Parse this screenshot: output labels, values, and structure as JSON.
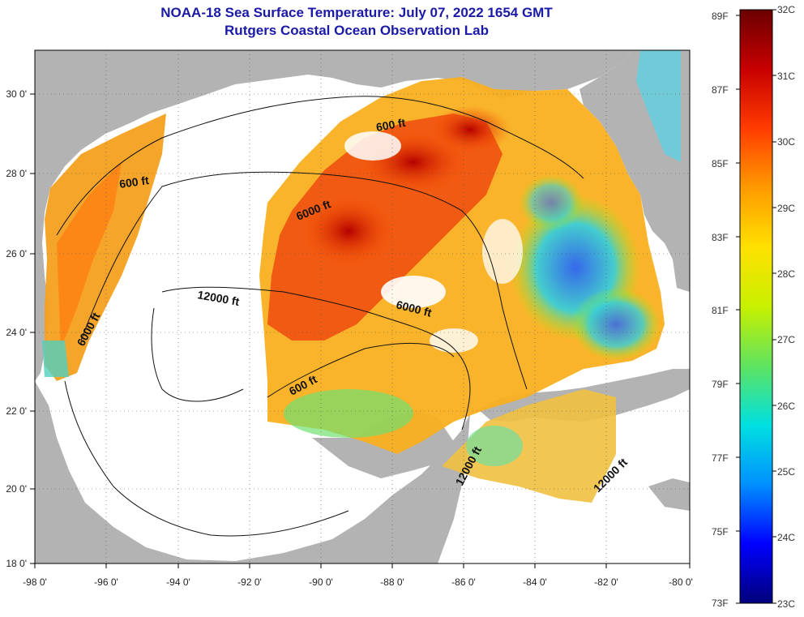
{
  "title": "NOAA-18 Sea Surface Temperature:  July 07, 2022 1654 GMT",
  "subtitle": "Rutgers Coastal Ocean Observation Lab",
  "map": {
    "lon_labels": [
      "-98 0'",
      "-96 0'",
      "-94 0'",
      "-92 0'",
      "-90 0'",
      "-88 0'",
      "-86 0'",
      "-84 0'",
      "-82 0'",
      "-80 0'"
    ],
    "lat_labels": [
      "30 0'",
      "28 0'",
      "26 0'",
      "24 0'",
      "22 0'",
      "20 0'",
      "18 0'"
    ],
    "contour_labels": [
      "600 ft",
      "600 ft",
      "600 ft",
      "6000 ft",
      "6000 ft",
      "6000 ft",
      "12000 ft",
      "12000 ft",
      "12000 ft"
    ],
    "land_color": "#b3b3b3",
    "nodata_color": "#ffffff"
  },
  "colorbar": {
    "fahrenheit": [
      "89F",
      "87F",
      "85F",
      "83F",
      "81F",
      "79F",
      "77F",
      "75F",
      "73F"
    ],
    "celsius": [
      "32C",
      "31C",
      "30C",
      "29C",
      "28C",
      "27C",
      "26C",
      "25C",
      "24C",
      "23C"
    ]
  }
}
